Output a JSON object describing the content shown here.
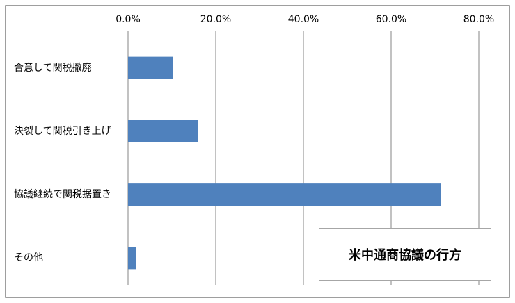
{
  "chart_data": {
    "type": "bar",
    "orientation": "horizontal",
    "title": "米中通商協議の行方",
    "categories": [
      "合意して関税撤廃",
      "決裂して関税引き上げ",
      "協議継続で関税据置き",
      "その他"
    ],
    "values": [
      10.3,
      16.0,
      71.3,
      1.9
    ],
    "color": "#4f81bd",
    "xlim": [
      0,
      80
    ],
    "xticks": [
      {
        "value": 0,
        "label": "0.0%"
      },
      {
        "value": 20,
        "label": "20.0%"
      },
      {
        "value": 40,
        "label": "40.0%"
      },
      {
        "value": 60,
        "label": "60.0%"
      },
      {
        "value": 80,
        "label": "80.0%"
      }
    ],
    "grid": true
  }
}
